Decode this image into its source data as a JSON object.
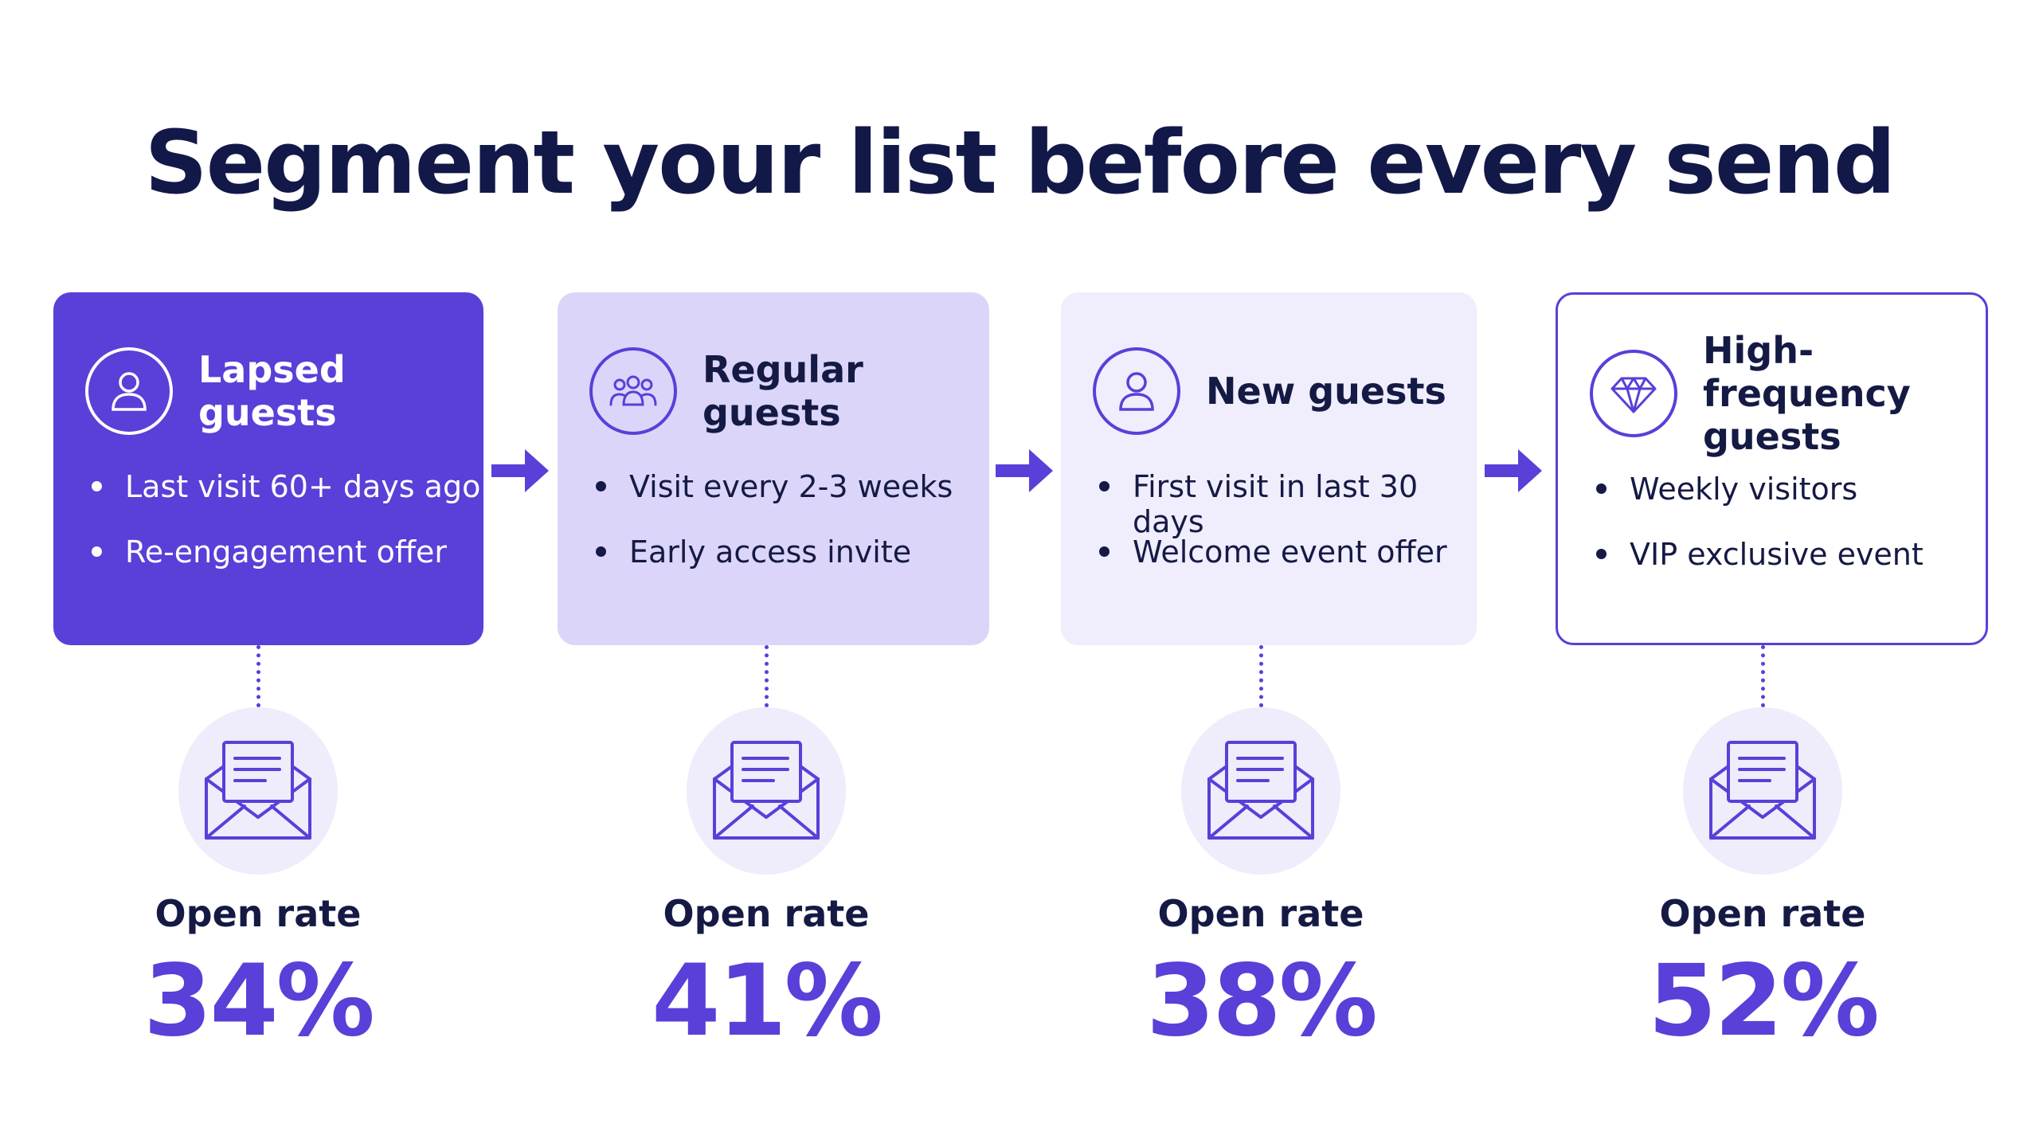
{
  "title": "Segment your list before every send",
  "colors": {
    "accent": "#5a3fd8",
    "text": "#141a44",
    "card_light": "#dcd5fa",
    "card_pale": "#f0edfc",
    "envelope_bg": "#efecfb"
  },
  "segments": [
    {
      "title": "Lapsed guests",
      "icon": "user-icon",
      "bullets": [
        "Last visit 60+ days ago",
        "Re-engagement offer"
      ],
      "rate_label": "Open rate",
      "rate": "34%"
    },
    {
      "title": "Regular guests",
      "icon": "group-icon",
      "bullets": [
        "Visit every 2-3 weeks",
        "Early access invite"
      ],
      "rate_label": "Open rate",
      "rate": "41%"
    },
    {
      "title": "New guests",
      "icon": "user-icon",
      "bullets": [
        "First visit in last 30 days",
        "Welcome event offer"
      ],
      "rate_label": "Open rate",
      "rate": "38%"
    },
    {
      "title": "High-frequency guests",
      "icon": "diamond-icon",
      "bullets": [
        "Weekly visitors",
        "VIP exclusive event"
      ],
      "rate_label": "Open rate",
      "rate": "52%"
    }
  ]
}
